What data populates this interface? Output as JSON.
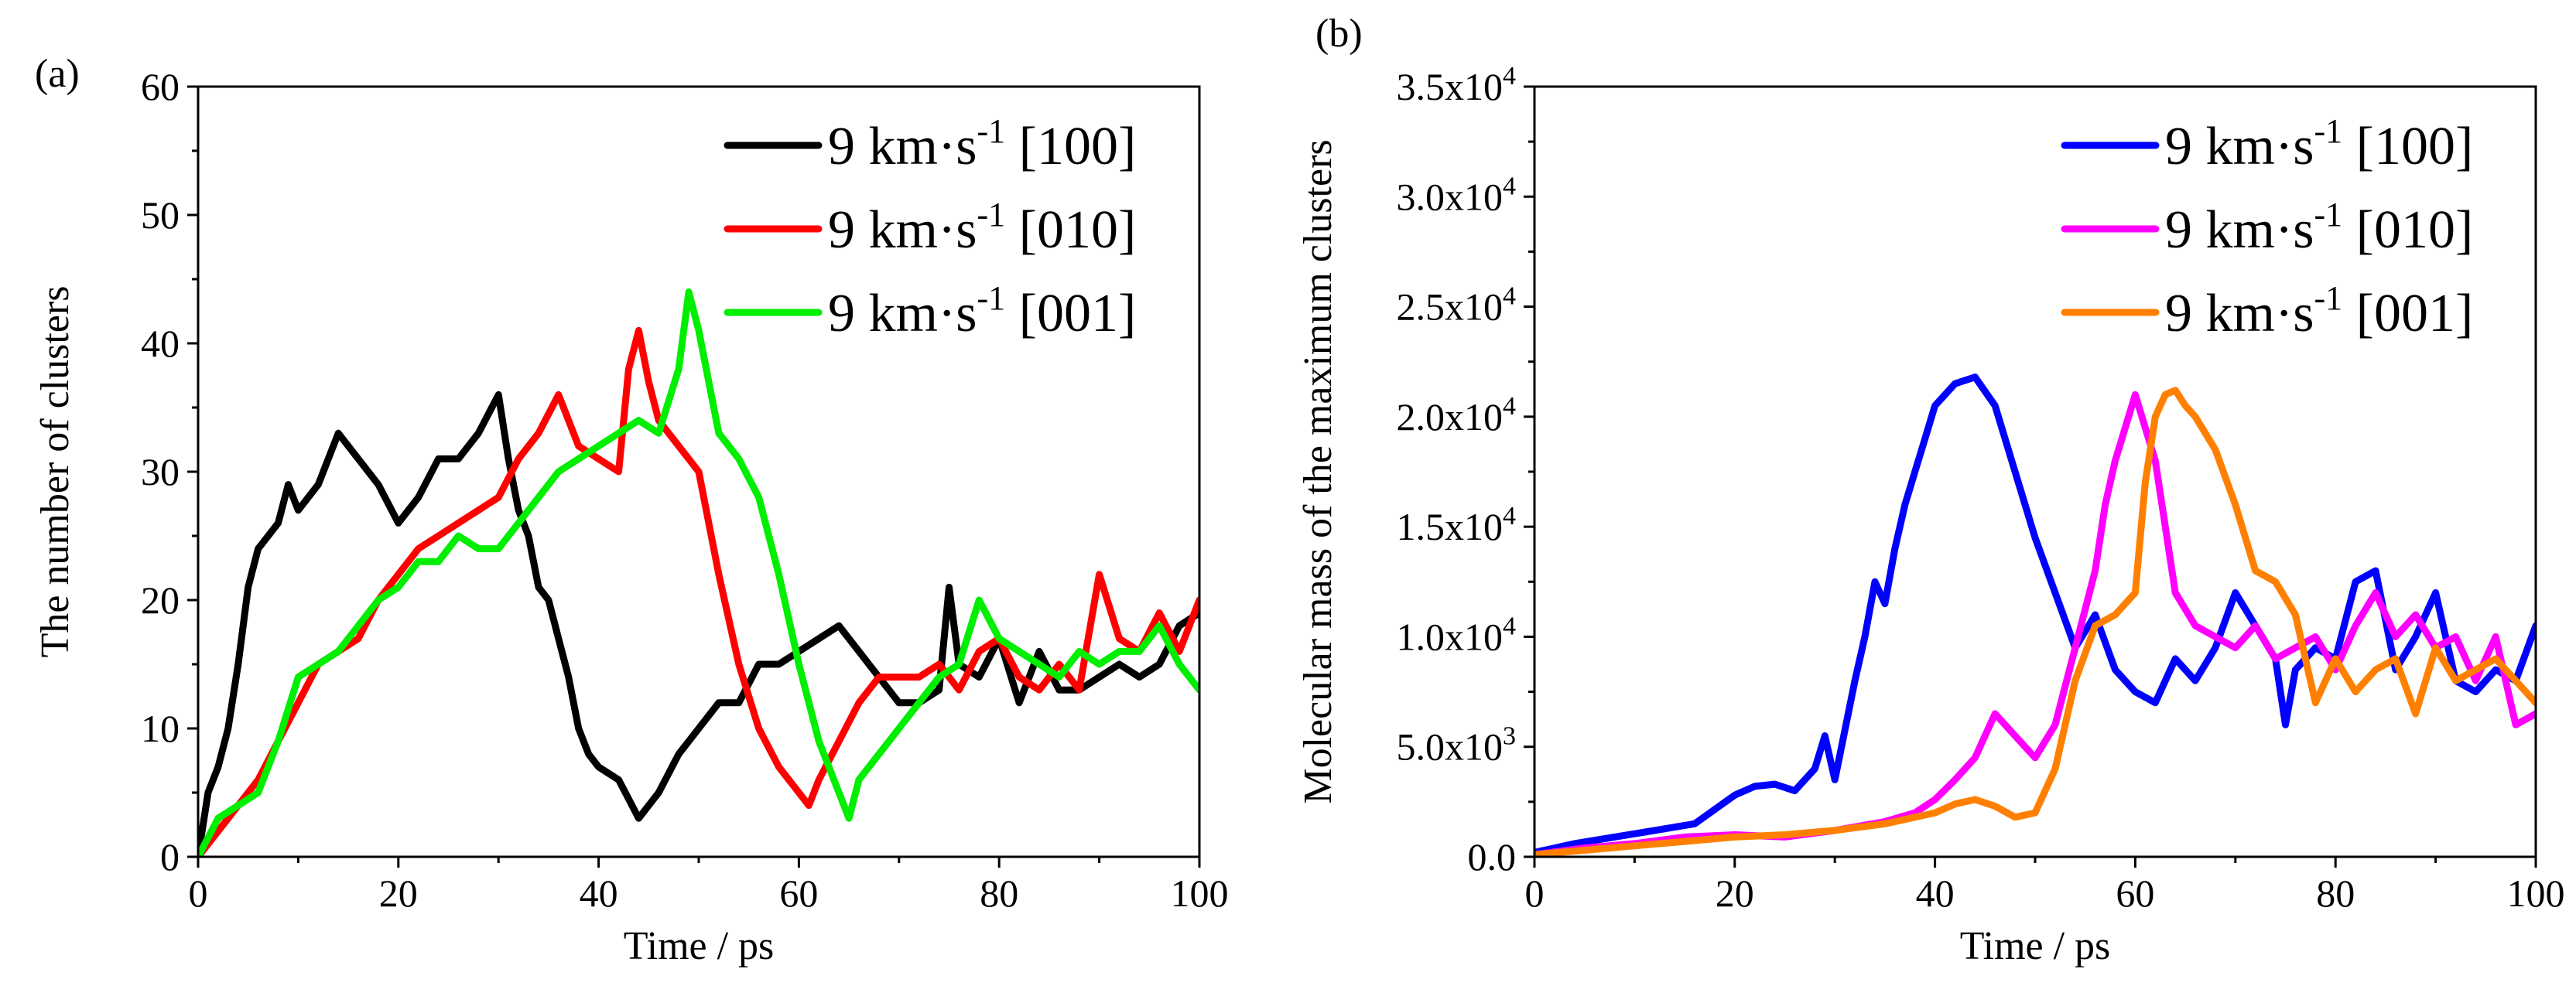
{
  "chart_data": [
    {
      "panel_label": "(a)",
      "type": "line",
      "xlabel": "Time / ps",
      "ylabel": "The number of clusters",
      "xlim": [
        0,
        100
      ],
      "ylim": [
        0,
        60
      ],
      "xticks": [
        0,
        20,
        40,
        60,
        80,
        100
      ],
      "yticks": [
        0,
        10,
        20,
        30,
        40,
        50,
        60
      ],
      "xtick_labels": [
        "0",
        "20",
        "40",
        "60",
        "80",
        "100"
      ],
      "ytick_labels": [
        "0",
        "10",
        "20",
        "30",
        "40",
        "50",
        "60"
      ],
      "legend_position": "top-right",
      "series": [
        {
          "name": "9 km·s-1 [100]",
          "legend": {
            "base": "9 km·s",
            "sup": "-1",
            "dir": " [100]"
          },
          "color": "#000000",
          "x": [
            0,
            1,
            2,
            3,
            4,
            5,
            6,
            7,
            8,
            9,
            10,
            12,
            14,
            16,
            18,
            20,
            22,
            24,
            26,
            28,
            30,
            31,
            32,
            33,
            34,
            35,
            36,
            37,
            38,
            39,
            40,
            42,
            44,
            45,
            46,
            48,
            50,
            52,
            54,
            56,
            58,
            60,
            62,
            64,
            66,
            68,
            70,
            72,
            74,
            75,
            76,
            78,
            80,
            82,
            84,
            86,
            88,
            90,
            92,
            94,
            96,
            98,
            100
          ],
          "y": [
            0,
            5,
            7,
            10,
            15,
            21,
            24,
            25,
            26,
            29,
            27,
            29,
            33,
            31,
            29,
            26,
            28,
            31,
            31,
            33,
            36,
            31,
            27,
            25,
            21,
            20,
            17,
            14,
            10,
            8,
            7,
            6,
            3,
            4,
            5,
            8,
            10,
            12,
            12,
            15,
            15,
            16,
            17,
            18,
            16,
            14,
            12,
            12,
            13,
            21,
            15,
            14,
            17,
            12,
            16,
            13,
            13,
            14,
            15,
            14,
            15,
            18,
            19
          ]
        },
        {
          "name": "9 km·s-1 [010]",
          "legend": {
            "base": "9 km·s",
            "sup": "-1",
            "dir": " [010]"
          },
          "color": "#ff0000",
          "x": [
            0,
            2,
            4,
            6,
            8,
            10,
            12,
            14,
            16,
            18,
            20,
            22,
            24,
            26,
            28,
            30,
            32,
            34,
            36,
            38,
            40,
            42,
            43,
            44,
            45,
            46,
            48,
            50,
            52,
            54,
            56,
            58,
            60,
            61,
            62,
            64,
            66,
            68,
            70,
            72,
            74,
            76,
            78,
            80,
            82,
            84,
            86,
            88,
            90,
            92,
            94,
            96,
            98,
            100
          ],
          "y": [
            0,
            2,
            4,
            6,
            9,
            12,
            15,
            16,
            17,
            20,
            22,
            24,
            25,
            26,
            27,
            28,
            31,
            33,
            36,
            32,
            31,
            30,
            38,
            41,
            37,
            34,
            32,
            30,
            22,
            15,
            10,
            7,
            5,
            4,
            6,
            9,
            12,
            14,
            14,
            14,
            15,
            13,
            16,
            17,
            14,
            13,
            15,
            13,
            22,
            17,
            16,
            19,
            16,
            20
          ]
        },
        {
          "name": "9 km·s-1 [001]",
          "legend": {
            "base": "9 km·s",
            "sup": "-1",
            "dir": " [001]"
          },
          "color": "#00ee00",
          "x": [
            0,
            2,
            4,
            6,
            8,
            10,
            12,
            14,
            16,
            18,
            20,
            22,
            24,
            26,
            28,
            30,
            32,
            34,
            36,
            38,
            40,
            42,
            44,
            46,
            48,
            49,
            50,
            52,
            54,
            56,
            58,
            60,
            62,
            64,
            65,
            66,
            68,
            70,
            72,
            74,
            76,
            78,
            80,
            82,
            84,
            86,
            88,
            90,
            92,
            94,
            96,
            98,
            100
          ],
          "y": [
            0,
            3,
            4,
            5,
            9,
            14,
            15,
            16,
            18,
            20,
            21,
            23,
            23,
            25,
            24,
            24,
            26,
            28,
            30,
            31,
            32,
            33,
            34,
            33,
            38,
            44,
            41,
            33,
            31,
            28,
            22,
            15,
            9,
            5,
            3,
            6,
            8,
            10,
            12,
            14,
            15,
            20,
            17,
            16,
            15,
            14,
            16,
            15,
            16,
            16,
            18,
            15,
            13
          ]
        }
      ]
    },
    {
      "panel_label": "(b)",
      "type": "line",
      "xlabel": "Time / ps",
      "ylabel": "Molecular mass of the maximum clusters",
      "xlim": [
        0,
        100
      ],
      "ylim": [
        0,
        35000
      ],
      "xticks": [
        0,
        20,
        40,
        60,
        80,
        100
      ],
      "yticks": [
        0,
        5000,
        10000,
        15000,
        20000,
        25000,
        30000,
        35000
      ],
      "xtick_labels": [
        "0",
        "20",
        "40",
        "60",
        "80",
        "100"
      ],
      "ytick_labels": [
        "0.0",
        "5.0x10^3",
        "1.0x10^4",
        "1.5x10^4",
        "2.0x10^4",
        "2.5x10^4",
        "3.0x10^4",
        "3.5x10^4"
      ],
      "ytick_parts": [
        {
          "base": "0.0",
          "sup": ""
        },
        {
          "base": "5.0x10",
          "sup": "3"
        },
        {
          "base": "1.0x10",
          "sup": "4"
        },
        {
          "base": "1.5x10",
          "sup": "4"
        },
        {
          "base": "2.0x10",
          "sup": "4"
        },
        {
          "base": "2.5x10",
          "sup": "4"
        },
        {
          "base": "3.0x10",
          "sup": "4"
        },
        {
          "base": "3.5x10",
          "sup": "4"
        }
      ],
      "legend_position": "top-right",
      "series": [
        {
          "name": "9 km·s-1 [100]",
          "legend": {
            "base": "9 km·s",
            "sup": "-1",
            "dir": " [100]"
          },
          "color": "#0000ff",
          "x": [
            0,
            4,
            8,
            12,
            16,
            20,
            22,
            24,
            26,
            28,
            29,
            30,
            32,
            33,
            34,
            35,
            36,
            37,
            38,
            39,
            40,
            42,
            44,
            46,
            48,
            50,
            52,
            54,
            56,
            58,
            60,
            62,
            64,
            66,
            68,
            70,
            72,
            74,
            75,
            76,
            78,
            80,
            82,
            84,
            86,
            88,
            90,
            92,
            94,
            96,
            98,
            100
          ],
          "y": [
            200,
            600,
            900,
            1200,
            1500,
            2800,
            3200,
            3300,
            3000,
            4000,
            5500,
            3500,
            8000,
            10000,
            12500,
            11500,
            14000,
            16000,
            17500,
            19000,
            20500,
            21500,
            21800,
            20500,
            17500,
            14500,
            12000,
            9500,
            11000,
            8500,
            7500,
            7000,
            9000,
            8000,
            9500,
            12000,
            10500,
            9000,
            6000,
            8500,
            9500,
            9000,
            12500,
            13000,
            8500,
            10000,
            12000,
            8000,
            7500,
            8500,
            8000,
            10500
          ]
        },
        {
          "name": "9 km·s-1 [010]",
          "legend": {
            "base": "9 km·s",
            "sup": "-1",
            "dir": " [010]"
          },
          "color": "#ff00ff",
          "x": [
            0,
            5,
            10,
            15,
            20,
            25,
            30,
            35,
            38,
            40,
            42,
            44,
            46,
            48,
            50,
            52,
            54,
            56,
            57,
            58,
            60,
            62,
            64,
            66,
            68,
            70,
            72,
            74,
            76,
            78,
            80,
            82,
            84,
            86,
            88,
            90,
            92,
            94,
            96,
            98,
            100
          ],
          "y": [
            100,
            400,
            600,
            900,
            1000,
            900,
            1200,
            1600,
            2000,
            2600,
            3500,
            4500,
            6500,
            5500,
            4500,
            6000,
            9500,
            13000,
            16000,
            18000,
            21000,
            18000,
            12000,
            10500,
            10000,
            9500,
            10500,
            9000,
            9500,
            10000,
            8500,
            10500,
            12000,
            10000,
            11000,
            9500,
            10000,
            8000,
            10000,
            6000,
            6500
          ]
        },
        {
          "name": "9 km·s-1 [001]",
          "legend": {
            "base": "9 km·s",
            "sup": "-1",
            "dir": " [001]"
          },
          "color": "#ff8000",
          "x": [
            0,
            5,
            10,
            15,
            20,
            25,
            30,
            35,
            40,
            42,
            44,
            46,
            48,
            50,
            52,
            54,
            56,
            58,
            60,
            61,
            62,
            63,
            64,
            65,
            66,
            68,
            70,
            72,
            74,
            76,
            78,
            80,
            82,
            84,
            86,
            88,
            90,
            92,
            94,
            96,
            98,
            100
          ],
          "y": [
            100,
            300,
            500,
            700,
            900,
            1000,
            1200,
            1500,
            2000,
            2400,
            2600,
            2300,
            1800,
            2000,
            4000,
            8000,
            10500,
            11000,
            12000,
            17000,
            20000,
            21000,
            21200,
            20500,
            20000,
            18500,
            16000,
            13000,
            12500,
            11000,
            7000,
            9000,
            7500,
            8500,
            9000,
            6500,
            9500,
            8000,
            8500,
            9000,
            8000,
            7000
          ]
        }
      ]
    }
  ]
}
